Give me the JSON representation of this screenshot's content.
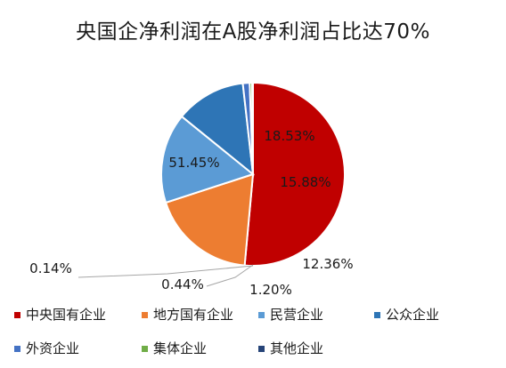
{
  "chart_data": {
    "type": "pie",
    "title": "央国企净利润在A股净利润占比达70%",
    "slices": [
      {
        "name": "中央国有企业",
        "value": 51.45,
        "label": "51.45%",
        "color": "#c00000"
      },
      {
        "name": "地方国有企业",
        "value": 18.53,
        "label": "18.53%",
        "color": "#ed7d31"
      },
      {
        "name": "民营企业",
        "value": 15.88,
        "label": "15.88%",
        "color": "#5b9bd5"
      },
      {
        "name": "公众企业",
        "value": 12.36,
        "label": "12.36%",
        "color": "#2e75b6"
      },
      {
        "name": "外资企业",
        "value": 1.2,
        "label": "1.20%",
        "color": "#4472c4"
      },
      {
        "name": "集体企业",
        "value": 0.44,
        "label": "0.44%",
        "color": "#70ad47"
      },
      {
        "name": "其他企业",
        "value": 0.14,
        "label": "0.14%",
        "color": "#264478"
      }
    ],
    "legend_position": "bottom"
  }
}
